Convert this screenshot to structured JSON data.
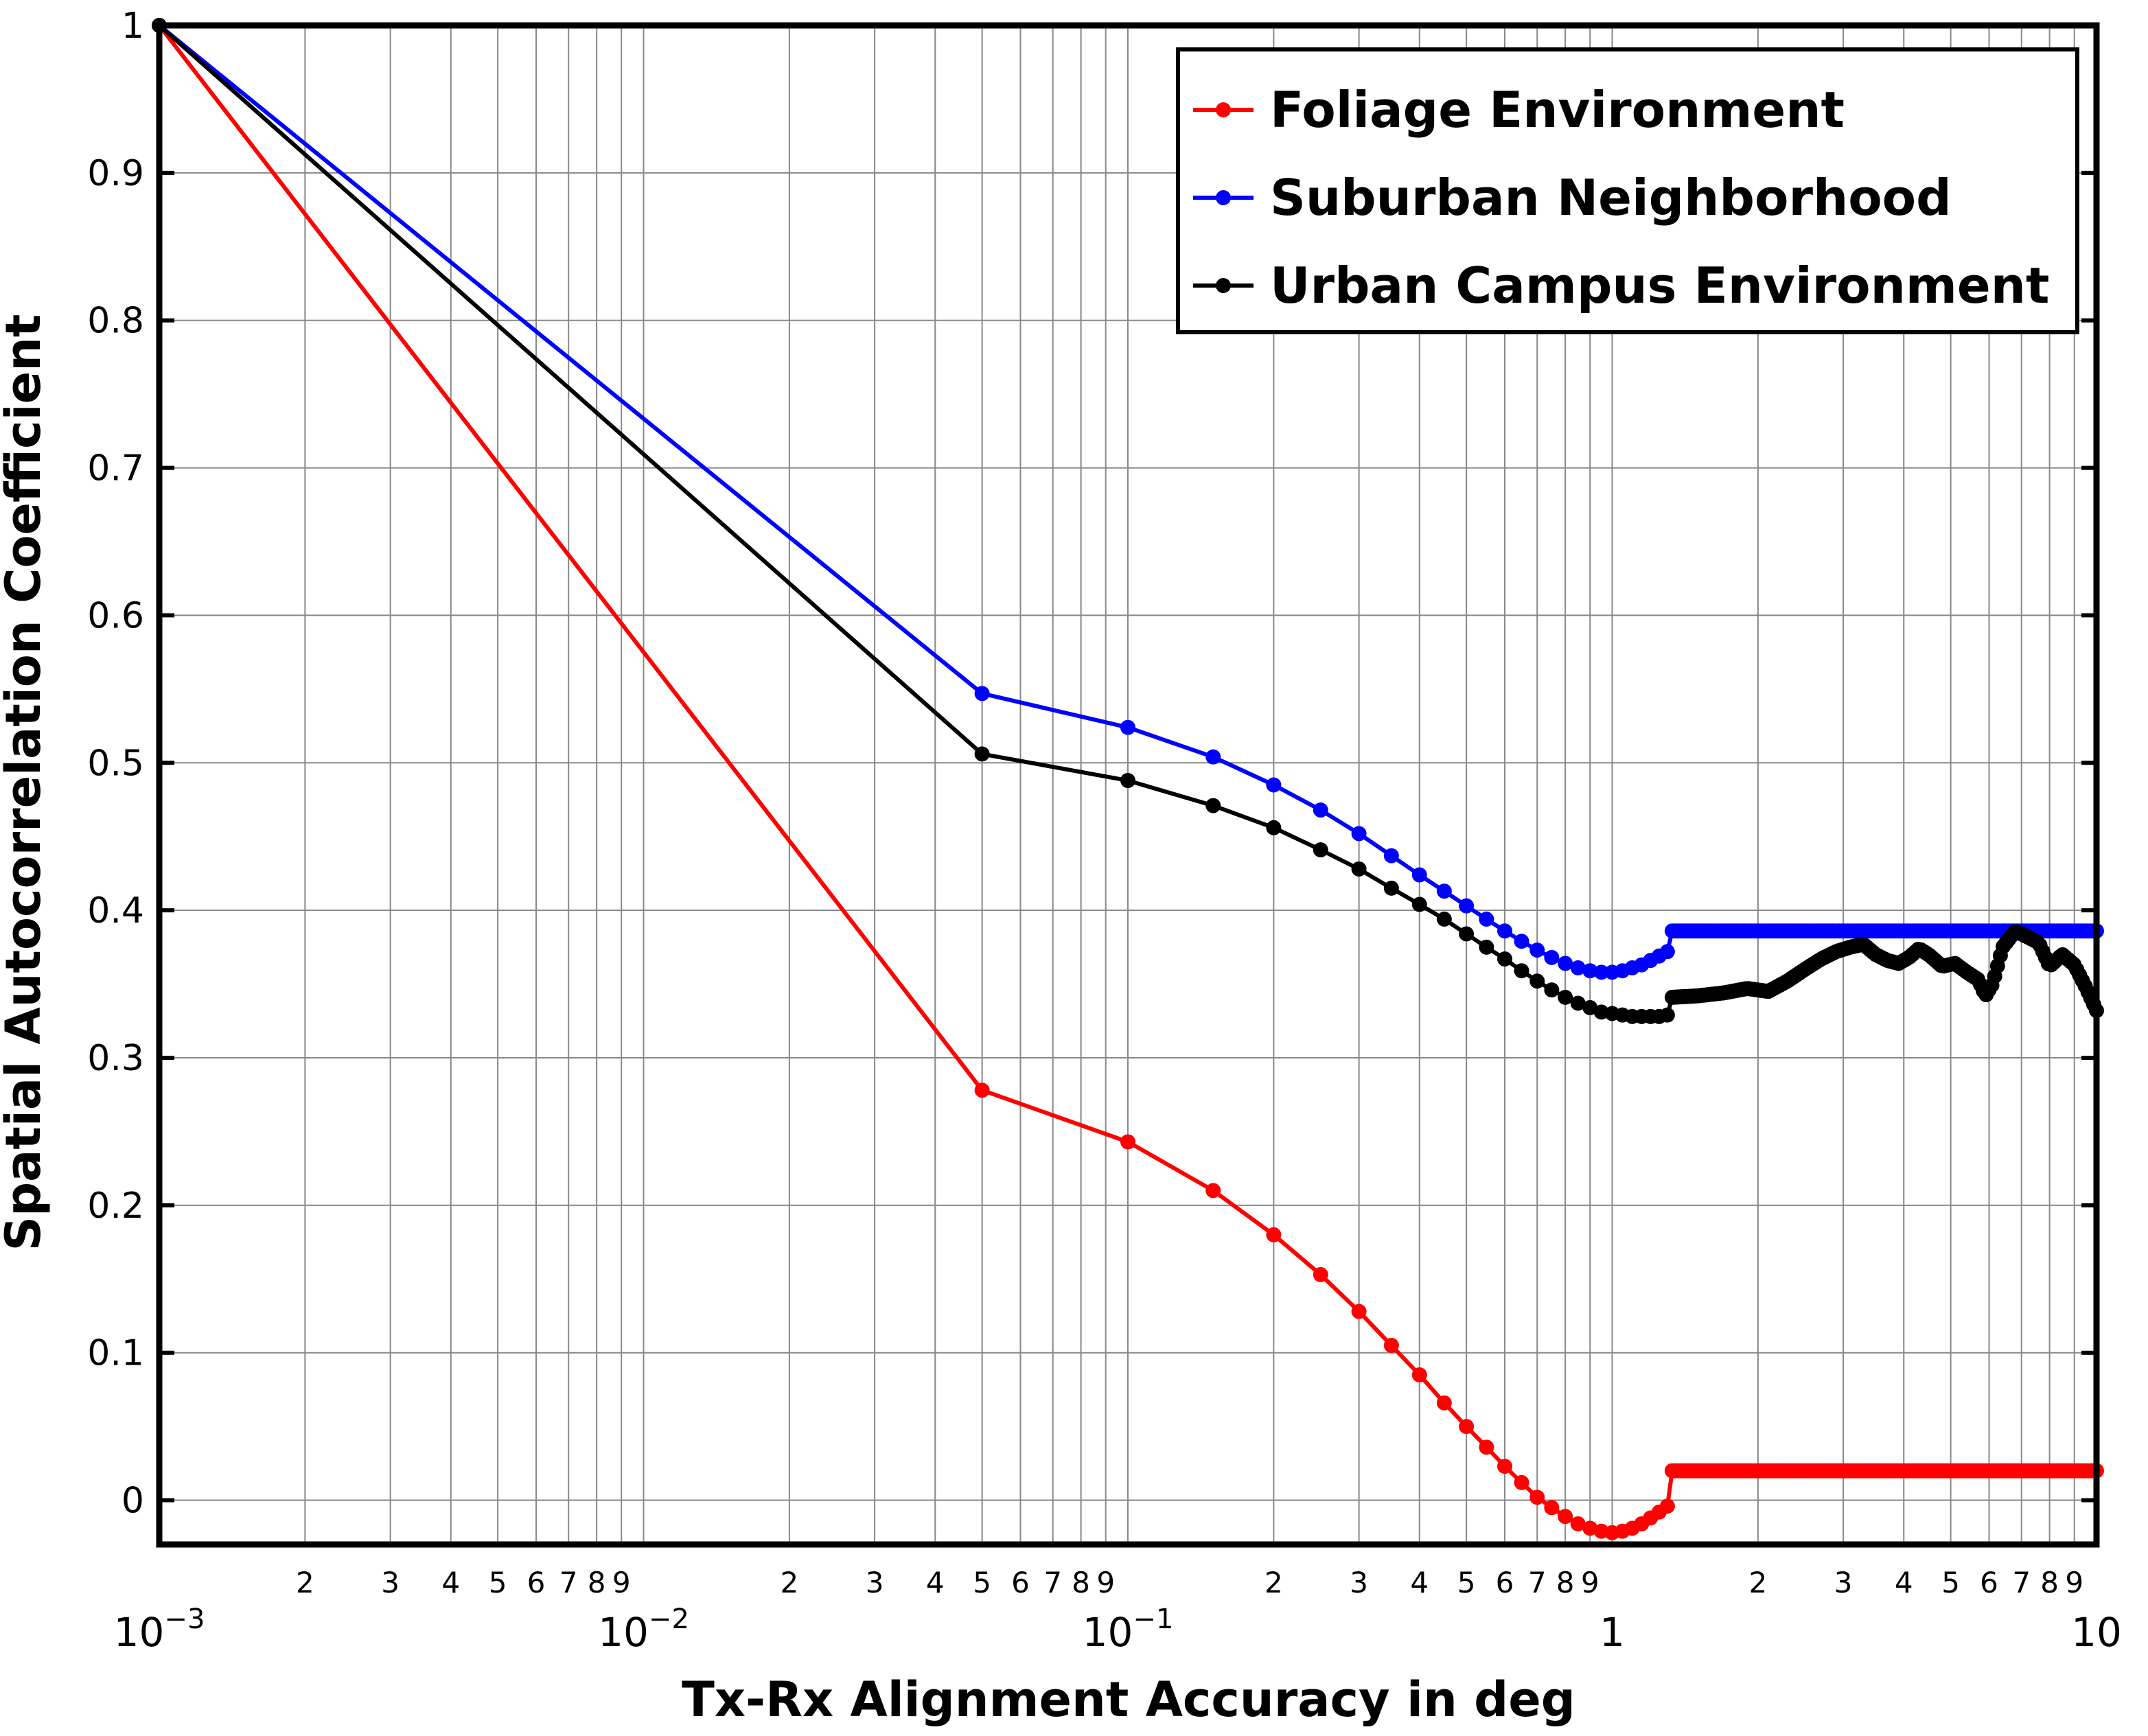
{
  "chart_data": {
    "type": "line",
    "title": "",
    "xlabel": "Tx-Rx Alignment Accuracy in deg",
    "ylabel": "Spatial Autocorrelation Coefficient",
    "x_scale": "log",
    "xlim": [
      0.001,
      10
    ],
    "ylim": [
      -0.03,
      1
    ],
    "grid": true,
    "legend_position": "top-right",
    "y_ticks": [
      "0",
      "0.1",
      "0.2",
      "0.3",
      "0.4",
      "0.5",
      "0.6",
      "0.7",
      "0.8",
      "0.9",
      "1"
    ],
    "x_major_ticks": [
      {
        "value": 0.001,
        "base": "10",
        "exp": "−3"
      },
      {
        "value": 0.01,
        "base": "10",
        "exp": "−2"
      },
      {
        "value": 0.1,
        "base": "10",
        "exp": "−1"
      },
      {
        "value": 1,
        "base": "1",
        "exp": ""
      },
      {
        "value": 10,
        "base": "10",
        "exp": ""
      }
    ],
    "x_minor_labels": [
      "2",
      "3",
      "4",
      "5",
      "6",
      "7",
      "8",
      "9"
    ],
    "series": [
      {
        "name": "Foliage Environment",
        "color": "#ff0000",
        "points": [
          [
            0.001,
            1.0
          ],
          [
            0.05,
            0.278
          ],
          [
            0.1,
            0.243
          ],
          [
            0.15,
            0.21
          ],
          [
            0.2,
            0.18
          ],
          [
            0.25,
            0.153
          ],
          [
            0.3,
            0.128
          ],
          [
            0.35,
            0.105
          ],
          [
            0.4,
            0.085
          ],
          [
            0.45,
            0.066
          ],
          [
            0.5,
            0.05
          ],
          [
            0.55,
            0.036
          ],
          [
            0.6,
            0.023
          ],
          [
            0.65,
            0.012
          ],
          [
            0.7,
            0.002
          ],
          [
            0.75,
            -0.005
          ],
          [
            0.8,
            -0.011
          ],
          [
            0.85,
            -0.016
          ],
          [
            0.9,
            -0.019
          ],
          [
            0.95,
            -0.021
          ],
          [
            1.0,
            -0.022
          ],
          [
            1.05,
            -0.021
          ],
          [
            1.1,
            -0.019
          ],
          [
            1.15,
            -0.016
          ],
          [
            1.2,
            -0.012
          ],
          [
            1.25,
            -0.008
          ],
          [
            1.3,
            -0.004
          ],
          [
            1.33,
            0.02
          ],
          [
            10,
            0.02
          ]
        ],
        "dense_from_x": 1.33
      },
      {
        "name": "Suburban Neighborhood",
        "color": "#0000ff",
        "points": [
          [
            0.001,
            1.0
          ],
          [
            0.05,
            0.547
          ],
          [
            0.1,
            0.524
          ],
          [
            0.15,
            0.504
          ],
          [
            0.2,
            0.485
          ],
          [
            0.25,
            0.468
          ],
          [
            0.3,
            0.452
          ],
          [
            0.35,
            0.437
          ],
          [
            0.4,
            0.424
          ],
          [
            0.45,
            0.413
          ],
          [
            0.5,
            0.403
          ],
          [
            0.55,
            0.394
          ],
          [
            0.6,
            0.386
          ],
          [
            0.65,
            0.379
          ],
          [
            0.7,
            0.373
          ],
          [
            0.75,
            0.368
          ],
          [
            0.8,
            0.364
          ],
          [
            0.85,
            0.361
          ],
          [
            0.9,
            0.359
          ],
          [
            0.95,
            0.358
          ],
          [
            1.0,
            0.358
          ],
          [
            1.05,
            0.359
          ],
          [
            1.1,
            0.361
          ],
          [
            1.15,
            0.363
          ],
          [
            1.2,
            0.366
          ],
          [
            1.25,
            0.369
          ],
          [
            1.3,
            0.372
          ],
          [
            1.33,
            0.386
          ],
          [
            10,
            0.386
          ]
        ],
        "dense_from_x": 1.33
      },
      {
        "name": "Urban Campus Environment",
        "color": "#000000",
        "points": [
          [
            0.001,
            1.0
          ],
          [
            0.05,
            0.506
          ],
          [
            0.1,
            0.488
          ],
          [
            0.15,
            0.471
          ],
          [
            0.2,
            0.456
          ],
          [
            0.25,
            0.441
          ],
          [
            0.3,
            0.428
          ],
          [
            0.35,
            0.415
          ],
          [
            0.4,
            0.404
          ],
          [
            0.45,
            0.394
          ],
          [
            0.5,
            0.384
          ],
          [
            0.55,
            0.375
          ],
          [
            0.6,
            0.367
          ],
          [
            0.65,
            0.359
          ],
          [
            0.7,
            0.352
          ],
          [
            0.75,
            0.346
          ],
          [
            0.8,
            0.341
          ],
          [
            0.85,
            0.337
          ],
          [
            0.9,
            0.334
          ],
          [
            0.95,
            0.331
          ],
          [
            1.0,
            0.33
          ],
          [
            1.05,
            0.329
          ],
          [
            1.1,
            0.328
          ],
          [
            1.15,
            0.328
          ],
          [
            1.2,
            0.328
          ],
          [
            1.25,
            0.328
          ],
          [
            1.3,
            0.329
          ],
          [
            1.33,
            0.341
          ],
          [
            1.5,
            0.342
          ],
          [
            1.7,
            0.344
          ],
          [
            1.9,
            0.347
          ],
          [
            2.1,
            0.345
          ],
          [
            2.3,
            0.352
          ],
          [
            2.5,
            0.36
          ],
          [
            2.7,
            0.367
          ],
          [
            2.9,
            0.372
          ],
          [
            3.1,
            0.375
          ],
          [
            3.3,
            0.377
          ],
          [
            3.5,
            0.37
          ],
          [
            3.7,
            0.366
          ],
          [
            3.9,
            0.364
          ],
          [
            4.1,
            0.368
          ],
          [
            4.3,
            0.374
          ],
          [
            4.5,
            0.37
          ],
          [
            4.8,
            0.362
          ],
          [
            5.1,
            0.364
          ],
          [
            5.4,
            0.358
          ],
          [
            5.7,
            0.353
          ],
          [
            5.9,
            0.342
          ],
          [
            6.1,
            0.35
          ],
          [
            6.4,
            0.375
          ],
          [
            6.8,
            0.386
          ],
          [
            7.2,
            0.382
          ],
          [
            7.6,
            0.378
          ],
          [
            8.0,
            0.362
          ],
          [
            8.5,
            0.37
          ],
          [
            9.0,
            0.363
          ],
          [
            9.5,
            0.348
          ],
          [
            10,
            0.332
          ]
        ],
        "dense_from_x": 1.33
      }
    ]
  }
}
